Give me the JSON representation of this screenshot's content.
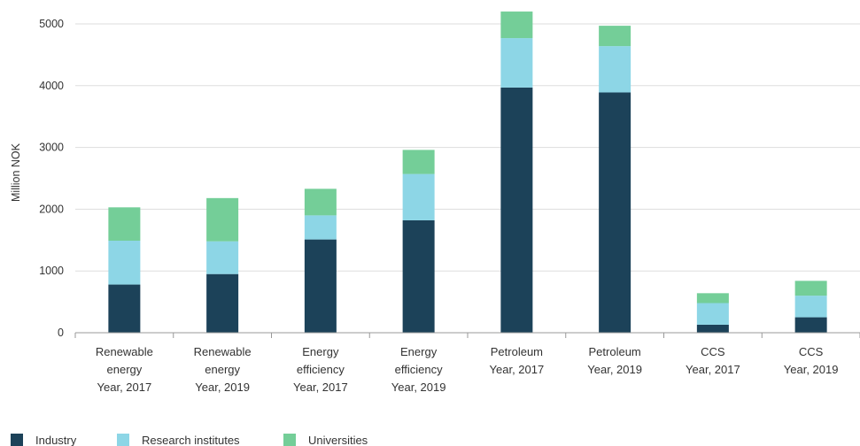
{
  "chart_data": {
    "type": "bar",
    "stacked": true,
    "title": "",
    "xlabel": "",
    "ylabel": "Million NOK",
    "ylim": [
      0,
      5200
    ],
    "yticks": [
      0,
      1000,
      2000,
      3000,
      4000,
      5000
    ],
    "grid": true,
    "legend_position": "bottom-left",
    "categories": [
      [
        "Renewable",
        "energy",
        "Year, 2017"
      ],
      [
        "Renewable",
        "energy",
        "Year, 2019"
      ],
      [
        "Energy",
        "efficiency",
        "Year, 2017"
      ],
      [
        "Energy",
        "efficiency",
        "Year, 2019"
      ],
      [
        "Petroleum",
        "Year, 2017"
      ],
      [
        "Petroleum",
        "Year, 2019"
      ],
      [
        "CCS",
        "Year, 2017"
      ],
      [
        "CCS",
        "Year, 2019"
      ]
    ],
    "series": [
      {
        "name": "Industry",
        "color": "#1c4259",
        "values": [
          780,
          950,
          1510,
          1820,
          3970,
          3890,
          130,
          250
        ]
      },
      {
        "name": "Research institutes",
        "color": "#8dd6e6",
        "values": [
          710,
          530,
          390,
          750,
          800,
          750,
          350,
          350
        ]
      },
      {
        "name": "Universities",
        "color": "#74ce98",
        "values": [
          540,
          700,
          430,
          390,
          430,
          330,
          160,
          240
        ]
      }
    ]
  }
}
